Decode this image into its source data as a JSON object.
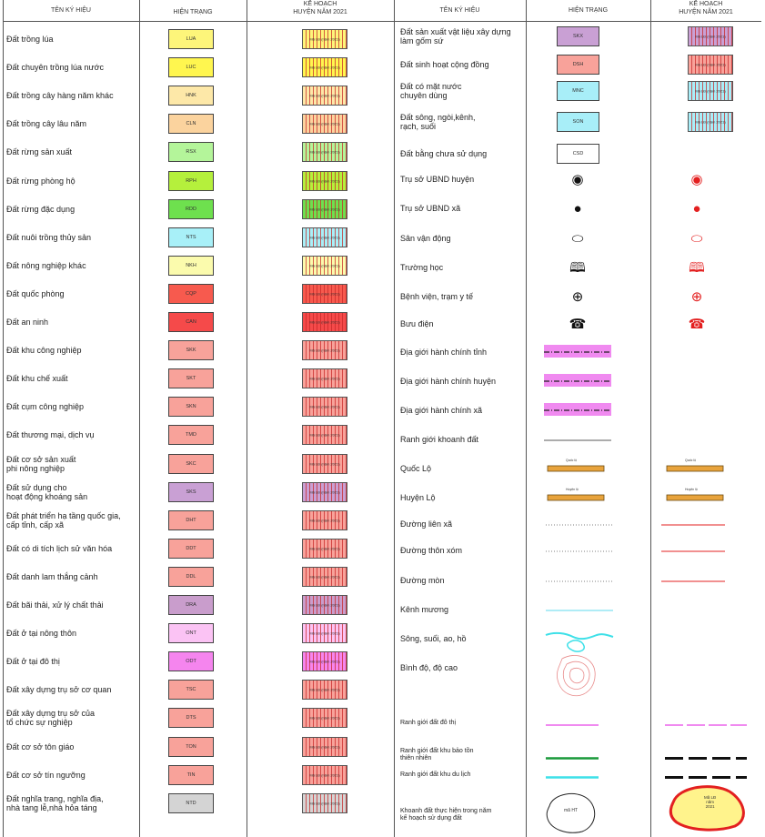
{
  "headers": {
    "name": "TÊN KÝ HIỆU",
    "current": "HIỆN TRẠNG",
    "plan": "KẾ HOẠCH\nHUYỆN NĂM 2021"
  },
  "plan_caption": "Mã LĐ (năm 2021)",
  "left_rows": [
    {
      "label": "Đất trồng lúa",
      "code": "LUA",
      "color": "#fdf57a"
    },
    {
      "label": "Đất chuyên trồng lúa nước",
      "code": "LUC",
      "color": "#fff64f"
    },
    {
      "label": "Đất trồng cây hàng năm khác",
      "code": "HNK",
      "color": "#fde8a8"
    },
    {
      "label": "Đất trồng cây lâu năm",
      "code": "CLN",
      "color": "#fbd39e"
    },
    {
      "label": "Đất rừng sản xuất",
      "code": "RSX",
      "color": "#b4f59a"
    },
    {
      "label": "Đất rừng phòng hộ",
      "code": "RPH",
      "color": "#b5f03c"
    },
    {
      "label": "Đất rừng đặc dụng",
      "code": "RDD",
      "color": "#6ee04e"
    },
    {
      "label": "Đất nuôi trồng thủy sản",
      "code": "NTS",
      "color": "#a8f0f8"
    },
    {
      "label": "Đất nông nghiệp khác",
      "code": "NKH",
      "color": "#fbfbad"
    },
    {
      "label": "Đất quốc phòng",
      "code": "CQP",
      "color": "#f75a4e"
    },
    {
      "label": "Đất an ninh",
      "code": "CAN",
      "color": "#f54a4a"
    },
    {
      "label": "Đất khu công nghiệp",
      "code": "SKK",
      "color": "#f8a29a"
    },
    {
      "label": "Đất khu chế xuất",
      "code": "SKT",
      "color": "#f8a29a"
    },
    {
      "label": "Đất cụm công nghiệp",
      "code": "SKN",
      "color": "#f8a29a"
    },
    {
      "label": "Đất thương mại, dịch vụ",
      "code": "TMD",
      "color": "#f8a29a"
    },
    {
      "label": "Đất cơ sở sản xuất\nphi nông nghiệp",
      "code": "SKC",
      "color": "#f8a29a"
    },
    {
      "label": "Đất sử dụng cho\nhoạt động khoáng sản",
      "code": "SKS",
      "color": "#c9a0d4"
    },
    {
      "label": "Đất phát triển hạ tầng quốc gia,\ncấp tỉnh, cấp xã",
      "code": "DHT",
      "color": "#f8a29a"
    },
    {
      "label": "Đất có di tích lịch sử văn hóa",
      "code": "DDT",
      "color": "#f8a29a"
    },
    {
      "label": "Đất danh lam thắng cảnh",
      "code": "DDL",
      "color": "#f8a29a"
    },
    {
      "label": "Đất bãi thải, xử lý chất thải",
      "code": "DRA",
      "color": "#c99dcc"
    },
    {
      "label": "Đất ở tại nông thôn",
      "code": "ONT",
      "color": "#fbc3f4"
    },
    {
      "label": "Đất ở tại đô thị",
      "code": "ODT",
      "color": "#f585ee"
    },
    {
      "label": "Đất xây dựng trụ sở cơ quan",
      "code": "TSC",
      "color": "#f8a29a"
    },
    {
      "label": "Đất xây dựng trụ sở của\ntổ chức sự nghiệp",
      "code": "DTS",
      "color": "#f8a29a"
    },
    {
      "label": "Đất cơ sở tôn giáo",
      "code": "TON",
      "color": "#f8a29a"
    },
    {
      "label": "Đất cơ sở tín ngưỡng",
      "code": "TIN",
      "color": "#f8a29a"
    },
    {
      "label": "Đất nghĩa trang, nghĩa địa,\nnhà tang lễ,nhà hỏa táng",
      "code": "NTD",
      "color": "#d4d4d4"
    }
  ],
  "right_rows": [
    {
      "label": "Đất sản xuất vật liệu xây dựng\nlàm gốm sứ",
      "kind": "box",
      "code": "SKX",
      "color": "#c9a0d4",
      "plan": true
    },
    {
      "label": "Đất sinh hoạt cộng đồng",
      "kind": "box",
      "code": "DSH",
      "color": "#f8a29a",
      "plan": true
    },
    {
      "label": "Đất có mặt nước\nchuyên dùng",
      "kind": "box",
      "code": "MNC",
      "color": "#a8eef8",
      "plan": true
    },
    {
      "label": "Đất sông, ngòi,kênh,\nrạch, suối",
      "kind": "box",
      "code": "SON",
      "color": "#a8eef8",
      "plan": true
    },
    {
      "label": "Đất bằng chưa sử dụng",
      "kind": "box",
      "code": "CSD",
      "color": "#ffffff",
      "plan": false
    },
    {
      "label": "Trụ sở UBND huyện",
      "kind": "sign",
      "current": "◉",
      "plan_sign": "◉"
    },
    {
      "label": "Trụ sở UBND xã",
      "kind": "sign",
      "current": "●",
      "plan_sign": "●"
    },
    {
      "label": "Sân vận động",
      "kind": "sign",
      "current": "⬭",
      "plan_sign": "⬭"
    },
    {
      "label": "Trường học",
      "kind": "sign",
      "current": "🕮",
      "plan_sign": "🕮"
    },
    {
      "label": "Bệnh viện, trạm y tế",
      "kind": "sign",
      "current": "⊕",
      "plan_sign": "⊕"
    },
    {
      "label": "Bưu điện",
      "kind": "sign",
      "current": "☎",
      "plan_sign": "☎"
    },
    {
      "label": "Địa giới hành chính tỉnh",
      "kind": "boundary"
    },
    {
      "label": "Địa giới hành chính huyện",
      "kind": "boundary"
    },
    {
      "label": "Địa giới hành chính xã",
      "kind": "boundary"
    },
    {
      "label": "Ranh giới khoanh đất",
      "kind": "thin"
    },
    {
      "label": "Quốc Lộ",
      "kind": "road",
      "tag": "Quốc lộ"
    },
    {
      "label": "Huyện Lộ",
      "kind": "road",
      "tag": "Huyện lộ"
    },
    {
      "label": "Đường liên xã",
      "kind": "dotted"
    },
    {
      "label": "Đường thôn xóm",
      "kind": "dotted"
    },
    {
      "label": "Đường mòn",
      "kind": "dotted"
    },
    {
      "label": "Kênh mương",
      "kind": "canal"
    },
    {
      "label": "Sông, suối, ao, hồ",
      "kind": "river"
    },
    {
      "label": "Bình độ, độ cao",
      "kind": "contour"
    },
    {
      "label": "Ranh giới đất đô thị",
      "kind": "urban"
    },
    {
      "label": "Ranh giới đất khu bảo tồn\nthiên nhiên",
      "kind": "green"
    },
    {
      "label": "Ranh giới đất khu du lịch",
      "kind": "cyan"
    },
    {
      "label": "Khoanh đất thực hiện trong năm\nkế hoạch sử dụng đất",
      "kind": "blob",
      "blob_label": "mã HT",
      "plan_label": "Mã LĐ\nnăm\n2021"
    }
  ],
  "colors": {
    "plan_red": "#e32020",
    "magenta": "#f08af0",
    "road": "#e8a33c",
    "green": "#1a9a3a",
    "cyan": "#3de0e8",
    "canal": "#7fe0f0"
  }
}
